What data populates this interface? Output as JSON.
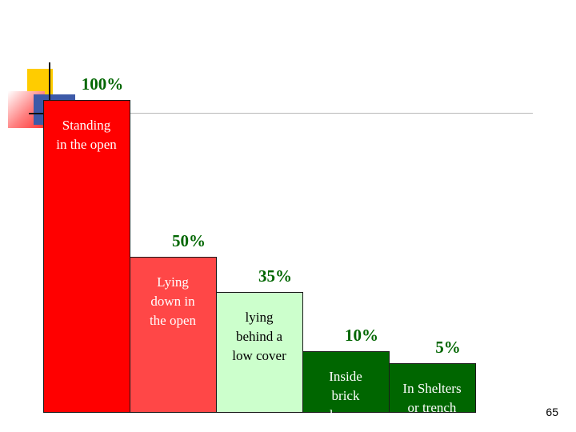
{
  "chart_data": {
    "type": "bar",
    "title": "",
    "xlabel": "",
    "ylabel": "",
    "ylim": [
      0,
      100
    ],
    "categories": [
      [
        "Standing",
        "in the open"
      ],
      [
        "Lying",
        "down in",
        "the open"
      ],
      [
        "lying",
        "behind a",
        "low cover"
      ],
      [
        "Inside",
        "brick",
        "house"
      ],
      [
        "In Shelters",
        "or trench"
      ]
    ],
    "values": [
      100,
      50,
      35,
      10,
      5
    ],
    "value_labels": [
      "100%",
      "50%",
      "35%",
      "10%",
      "5%"
    ],
    "colors": [
      "#ff0000",
      "#ff4747",
      "#ccffcc",
      "#006600",
      "#006600"
    ],
    "label_colors": [
      "#ffffff",
      "#ffffff",
      "#000000",
      "#ffffff",
      "#ffffff"
    ],
    "value_label_colors": [
      "#006600",
      "#006600",
      "#006600",
      "#006600",
      "#006600"
    ]
  },
  "slide": {
    "number": "65"
  }
}
